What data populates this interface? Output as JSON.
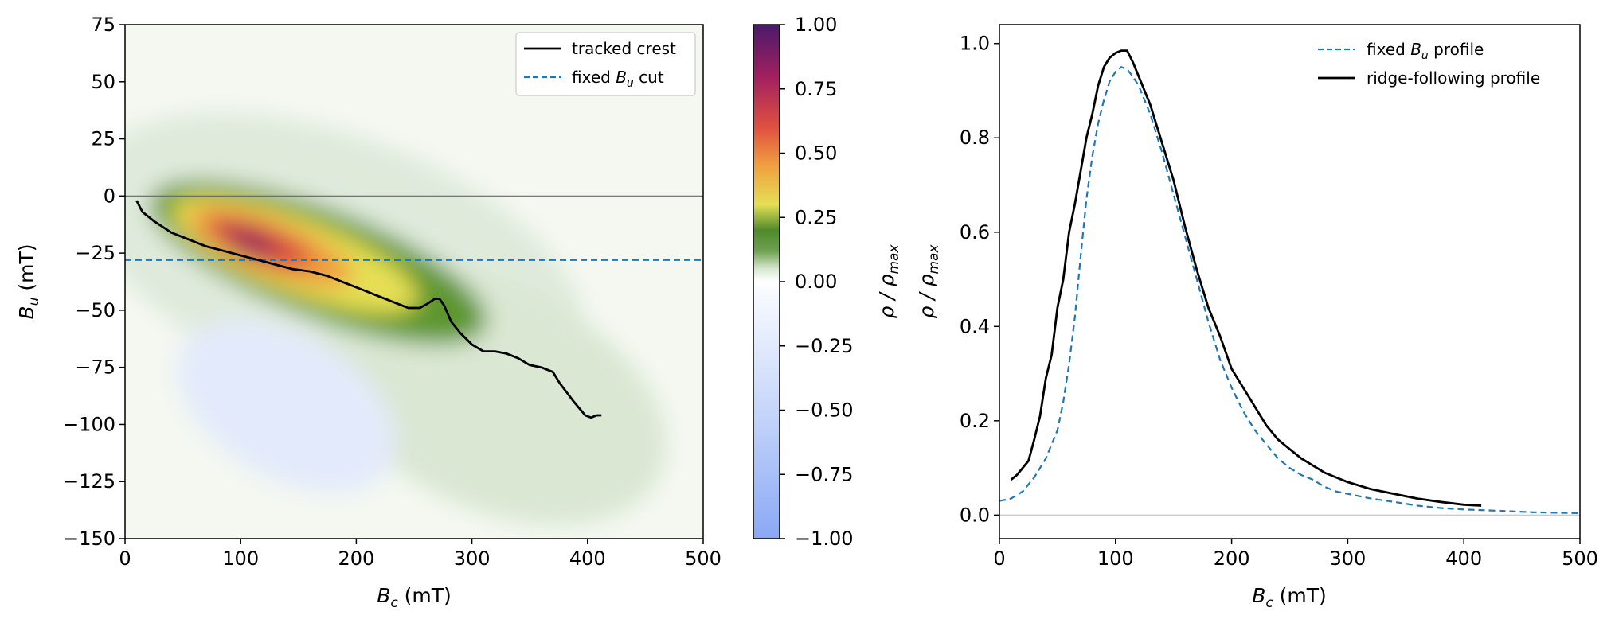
{
  "chart_data": [
    {
      "id": "forc",
      "type": "heatmap",
      "xlabel_main": "B",
      "xlabel_sub": "c",
      "xlabel_unit": " (mT)",
      "ylabel_main": "B",
      "ylabel_sub": "u",
      "ylabel_unit": " (mT)",
      "xlim": [
        0,
        500
      ],
      "ylim": [
        -150,
        75
      ],
      "xticks": [
        0,
        100,
        200,
        300,
        400,
        500
      ],
      "xtick_labels": [
        "0",
        "100",
        "200",
        "300",
        "400",
        "500"
      ],
      "yticks": [
        75,
        50,
        25,
        0,
        -25,
        -50,
        -75,
        -100,
        -125,
        -150
      ],
      "ytick_labels": [
        "75",
        "50",
        "25",
        "0",
        "−25",
        "−50",
        "−75",
        "−100",
        "−125",
        "−150"
      ],
      "zero_line_y": 0,
      "fixed_cut_y": -28,
      "legend_position": "upper right",
      "legend": [
        {
          "key": "crest",
          "label": "tracked crest",
          "style": "solid",
          "color": "#000000"
        },
        {
          "key": "cut",
          "label_prefix": "fixed ",
          "label_var": "B",
          "label_sub": "u",
          "label_suffix": " cut",
          "style": "dashed",
          "color": "#1f77b4"
        }
      ],
      "crest": {
        "x": [
          10,
          15,
          25,
          40,
          55,
          70,
          85,
          100,
          115,
          130,
          145,
          160,
          175,
          190,
          205,
          220,
          235,
          245,
          255,
          262,
          268,
          272,
          276,
          282,
          290,
          300,
          310,
          320,
          330,
          340,
          350,
          360,
          370,
          376,
          382,
          388,
          393,
          398,
          403,
          408,
          412
        ],
        "y": [
          -2,
          -7,
          -11,
          -16,
          -19,
          -22,
          -24,
          -26,
          -28,
          -30,
          -32,
          -33,
          -35,
          -38,
          -41,
          -44,
          -47,
          -49,
          -49,
          -47,
          -45,
          -45,
          -48,
          -55,
          -60,
          -65,
          -68,
          -68,
          -69,
          -71,
          -74,
          -75,
          -77,
          -82,
          -86,
          -90,
          -93,
          -96,
          -97,
          -96,
          -96
        ]
      },
      "colorbar": {
        "label": "ρ / ρ",
        "label_sub": "max",
        "range": [
          -1,
          1
        ],
        "ticks": [
          1,
          0.75,
          0.5,
          0.25,
          0,
          -0.25,
          -0.5,
          -0.75,
          -1
        ],
        "tick_labels": [
          "1.00",
          "0.75",
          "0.50",
          "0.25",
          "0.00",
          "−0.25",
          "−0.50",
          "−0.75",
          "−1.00"
        ],
        "stops": [
          {
            "v": -1.0,
            "color": "#8aa8f5"
          },
          {
            "v": -0.5,
            "color": "#c6d6fa"
          },
          {
            "v": -0.05,
            "color": "#f7f9ff"
          },
          {
            "v": 0.0,
            "color": "#ffffff"
          },
          {
            "v": 0.05,
            "color": "#d8e8d0"
          },
          {
            "v": 0.12,
            "color": "#6ea050"
          },
          {
            "v": 0.2,
            "color": "#4f8a2a"
          },
          {
            "v": 0.3,
            "color": "#e5df55"
          },
          {
            "v": 0.45,
            "color": "#f0a040"
          },
          {
            "v": 0.6,
            "color": "#e05040"
          },
          {
            "v": 0.8,
            "color": "#a02060"
          },
          {
            "v": 1.0,
            "color": "#4a1a6a"
          }
        ]
      }
    },
    {
      "id": "profiles",
      "type": "line",
      "xlabel_main": "B",
      "xlabel_sub": "c",
      "xlabel_unit": " (mT)",
      "ylabel": "ρ / ρ",
      "ylabel_sub": "max",
      "xlim": [
        0,
        500
      ],
      "ylim": [
        -0.05,
        1.04
      ],
      "xticks": [
        0,
        100,
        200,
        300,
        400,
        500
      ],
      "xtick_labels": [
        "0",
        "100",
        "200",
        "300",
        "400",
        "500"
      ],
      "yticks": [
        0,
        0.2,
        0.4,
        0.6,
        0.8,
        1.0
      ],
      "ytick_labels": [
        "0.0",
        "0.2",
        "0.4",
        "0.6",
        "0.8",
        "1.0"
      ],
      "zero_line_y": 0,
      "legend_position": "upper right",
      "legend": [
        {
          "key": "fixed",
          "label_prefix": "fixed ",
          "label_var": "B",
          "label_sub": "u",
          "label_suffix": " profile",
          "style": "dashed",
          "color": "#1f77b4"
        },
        {
          "key": "ridge",
          "label": "ridge-following profile",
          "style": "solid",
          "color": "#000000"
        }
      ],
      "series": [
        {
          "key": "fixed",
          "x": [
            0,
            10,
            20,
            30,
            40,
            50,
            55,
            60,
            65,
            70,
            75,
            80,
            85,
            90,
            95,
            100,
            105,
            110,
            115,
            120,
            130,
            140,
            150,
            160,
            170,
            180,
            190,
            200,
            210,
            220,
            230,
            240,
            250,
            260,
            270,
            280,
            290,
            300,
            320,
            340,
            360,
            380,
            400,
            420,
            440,
            460,
            480,
            500
          ],
          "y": [
            0.03,
            0.035,
            0.05,
            0.08,
            0.12,
            0.18,
            0.24,
            0.32,
            0.42,
            0.55,
            0.67,
            0.76,
            0.83,
            0.88,
            0.92,
            0.94,
            0.95,
            0.945,
            0.93,
            0.91,
            0.85,
            0.77,
            0.68,
            0.59,
            0.5,
            0.41,
            0.33,
            0.27,
            0.22,
            0.18,
            0.15,
            0.12,
            0.1,
            0.085,
            0.075,
            0.06,
            0.05,
            0.045,
            0.035,
            0.028,
            0.02,
            0.015,
            0.012,
            0.01,
            0.008,
            0.006,
            0.005,
            0.004
          ]
        },
        {
          "key": "ridge",
          "x": [
            10,
            15,
            20,
            25,
            30,
            35,
            40,
            45,
            50,
            55,
            60,
            65,
            70,
            75,
            80,
            85,
            90,
            95,
            100,
            105,
            110,
            115,
            120,
            130,
            140,
            150,
            160,
            170,
            180,
            190,
            200,
            210,
            220,
            230,
            240,
            250,
            260,
            270,
            280,
            290,
            300,
            320,
            340,
            360,
            380,
            400,
            415
          ],
          "y": [
            0.075,
            0.085,
            0.1,
            0.115,
            0.16,
            0.21,
            0.29,
            0.34,
            0.44,
            0.5,
            0.6,
            0.66,
            0.73,
            0.8,
            0.85,
            0.91,
            0.95,
            0.97,
            0.98,
            0.985,
            0.985,
            0.96,
            0.93,
            0.87,
            0.79,
            0.71,
            0.61,
            0.52,
            0.44,
            0.38,
            0.31,
            0.27,
            0.23,
            0.19,
            0.16,
            0.14,
            0.12,
            0.105,
            0.09,
            0.08,
            0.07,
            0.055,
            0.045,
            0.035,
            0.028,
            0.022,
            0.02
          ]
        }
      ]
    }
  ]
}
